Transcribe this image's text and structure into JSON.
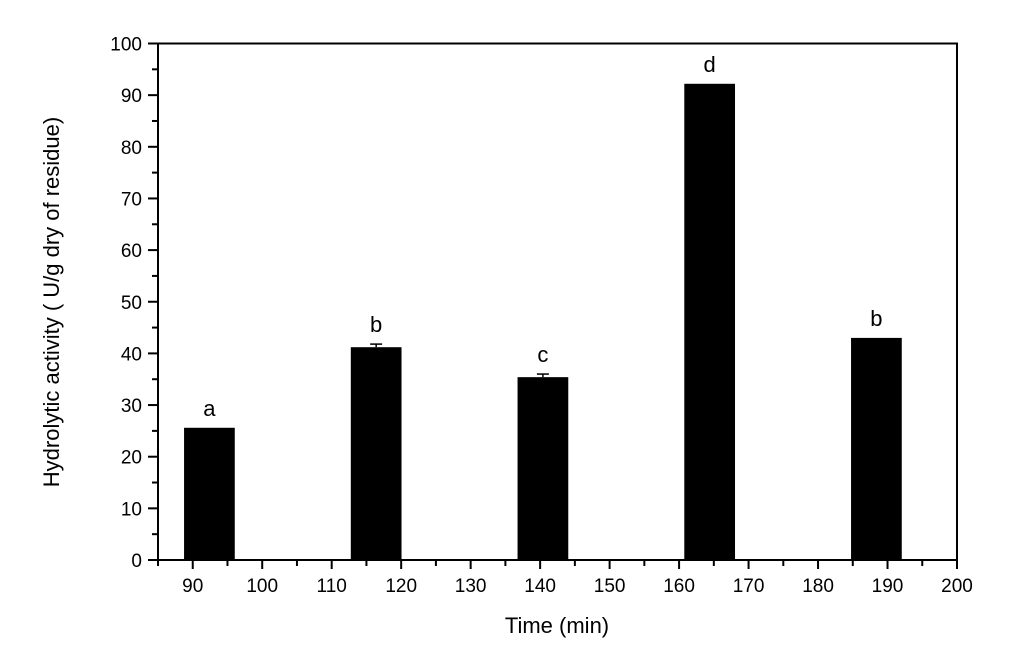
{
  "chart_data": {
    "type": "bar",
    "title": "",
    "xlabel": "Time (min)",
    "ylabel": "Hydrolytic activity ( U/g dry of residue)",
    "xlim": [
      85,
      200
    ],
    "ylim": [
      0,
      100
    ],
    "x_ticks": [
      90,
      100,
      110,
      120,
      130,
      140,
      150,
      160,
      170,
      180,
      190,
      200
    ],
    "x_minor_step": 5,
    "y_ticks": [
      0,
      10,
      20,
      30,
      40,
      50,
      60,
      70,
      80,
      90,
      100
    ],
    "y_minor_step": 5,
    "grid": false,
    "legend": null,
    "bar_width": 7.3,
    "bar_color": "#000000",
    "x": [
      92.4,
      116.4,
      140.4,
      164.4,
      188.4
    ],
    "values": [
      25.6,
      41.2,
      35.4,
      92.2,
      43.0
    ],
    "errors": [
      0,
      0.6,
      0.6,
      0,
      0
    ],
    "annotations": [
      "a",
      "b",
      "c",
      "d",
      "b"
    ]
  }
}
